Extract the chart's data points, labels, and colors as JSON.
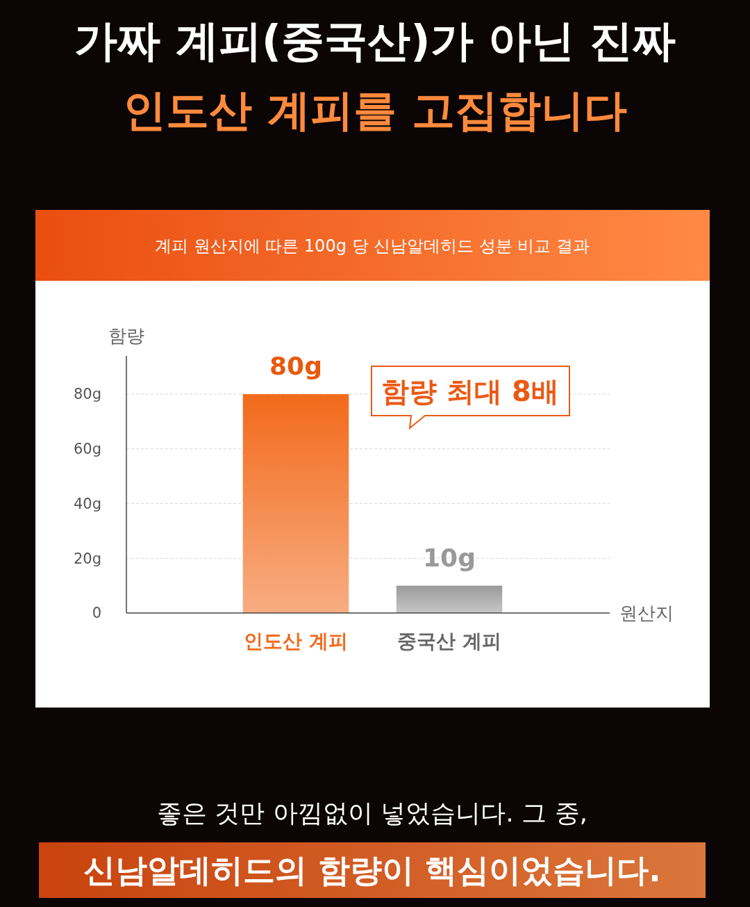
{
  "chart_data": {
    "type": "bar",
    "title": "가짜 계피(중국산)가 아닌 진짜 인도산 계피를 고집합니다",
    "subtitle": "계피 원산지에 따른 100g 당 신남알데히드 성분 비교 결과",
    "ylabel": "함량",
    "xlabel": "원산지",
    "categories": [
      "인도산 계피",
      "중국산 계피"
    ],
    "values": [
      80,
      10
    ],
    "colors": [
      "#f26a1b",
      "#9a9a9a"
    ],
    "value_labels": [
      "80g",
      "10g"
    ],
    "ylim": [
      0,
      94
    ],
    "yticks": [
      0,
      {
        "value": 20,
        "label": "20g"
      },
      {
        "value": 40,
        "label": "40g"
      },
      {
        "value": 60,
        "label": "60g"
      },
      {
        "value": 80,
        "label": "80g"
      }
    ],
    "grid": "y",
    "annotations": [
      "함량 최대 8배",
      "좋은 것만 아낌없이 넣었습니다. 그 중,",
      "신남알데히드의 함량이 핵심이었습니다."
    ]
  }
}
